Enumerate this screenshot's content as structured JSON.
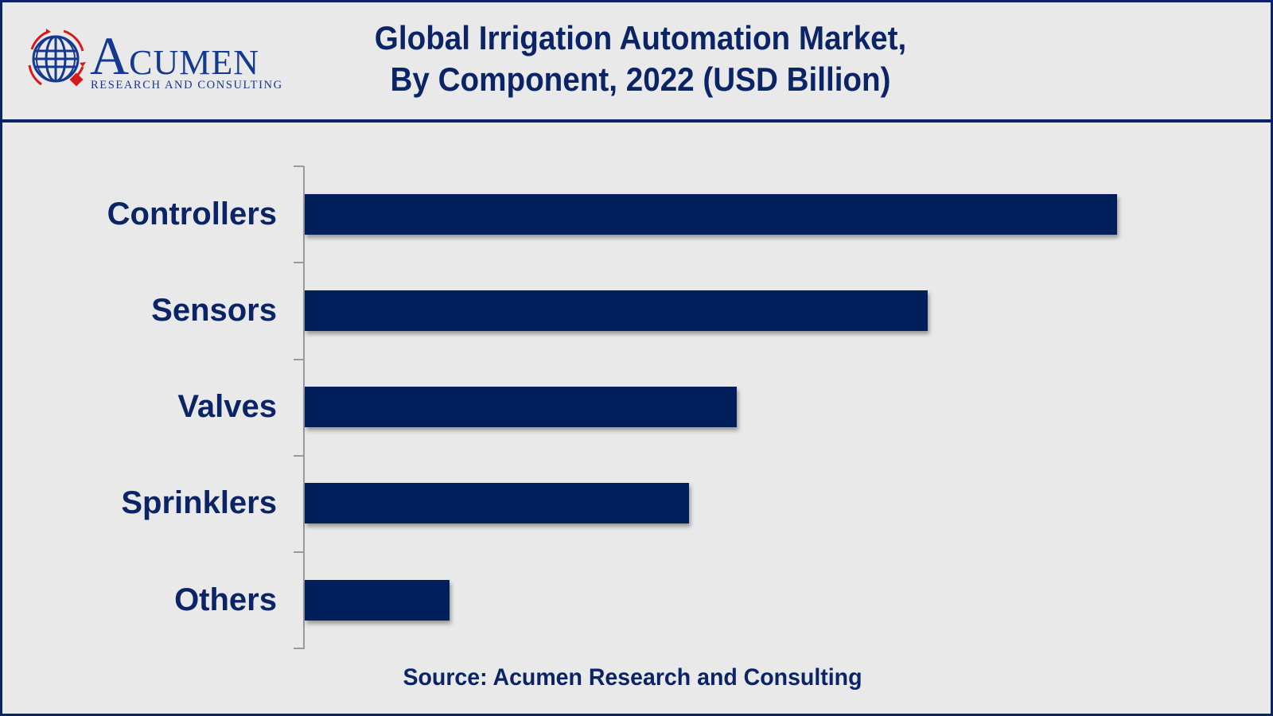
{
  "logo": {
    "brand_initial": "A",
    "brand_rest": "CUMEN",
    "tagline": "RESEARCH AND CONSULTING",
    "icon": "globe-icon"
  },
  "header": {
    "title_line1": "Global Irrigation Automation Market,",
    "title_line2": "By Component, 2022 (USD Billion)"
  },
  "footer": {
    "source": "Source: Acumen Research and Consulting"
  },
  "colors": {
    "bar": "#001f5b",
    "text": "#0b2466",
    "frame": "#0b2466",
    "background": "#e9e9e9",
    "logo_red": "#d7191c",
    "logo_blue": "#14398f"
  },
  "chart_data": {
    "type": "bar",
    "orientation": "horizontal",
    "title": "Global Irrigation Automation Market, By Component, 2022 (USD Billion)",
    "xlabel": "",
    "ylabel": "",
    "categories": [
      "Controllers",
      "Sensors",
      "Valves",
      "Sprinklers",
      "Others"
    ],
    "values": [
      1021,
      783,
      543,
      483,
      182
    ],
    "value_units": "relative bar length (no numeric axis or data labels shown)",
    "relative_share_of_max": [
      1.0,
      0.77,
      0.53,
      0.47,
      0.18
    ],
    "grid": false,
    "legend": null,
    "x_axis_visible": false,
    "source": "Source: Acumen Research and Consulting"
  }
}
